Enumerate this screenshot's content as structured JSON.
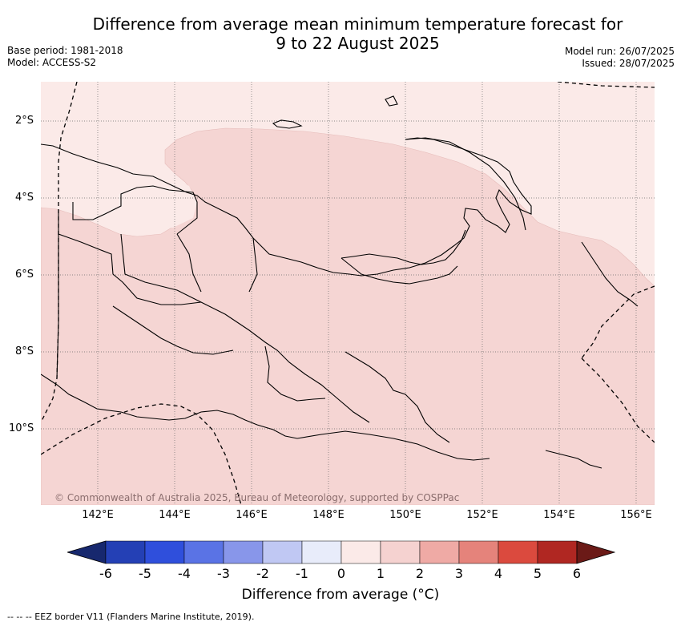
{
  "title_line1": "Difference from average mean minimum temperature forecast for",
  "title_line2": "9 to 22 August 2025",
  "base_period": "Base period: 1981-2018",
  "model": "Model: ACCESS-S2",
  "model_run": "Model run: 26/07/2025",
  "issued": "Issued: 28/07/2025",
  "lat_labels": [
    "2°S",
    "4°S",
    "6°S",
    "8°S",
    "10°S"
  ],
  "lon_labels": [
    "142°E",
    "144°E",
    "146°E",
    "148°E",
    "150°E",
    "152°E",
    "154°E",
    "156°E"
  ],
  "copyright": "© Commonwealth of Australia 2025, Bureau of Meteorology, supported by COSPPac",
  "colorbar": {
    "ticks": [
      "-6",
      "-5",
      "-4",
      "-3",
      "-2",
      "-1",
      "0",
      "1",
      "2",
      "3",
      "4",
      "5",
      "6"
    ],
    "colors": [
      "#17286e",
      "#2440b5",
      "#2f4fdc",
      "#5a73e5",
      "#8896ea",
      "#c0c8f3",
      "#e8ecfa",
      "#fbeae8",
      "#f5d2d0",
      "#efaaa5",
      "#e5837b",
      "#db4a3e",
      "#b02722",
      "#6b1a17"
    ],
    "label": "Difference from average (°C)"
  },
  "footer": "--  --  -- EEZ border V11 (Flanders Marine Institute, 2019).",
  "map_colors": {
    "anomaly_0_1": "#fbeae8",
    "anomaly_1_2": "#f5d5d3",
    "gridline": "#666666",
    "coastline": "#000000"
  }
}
